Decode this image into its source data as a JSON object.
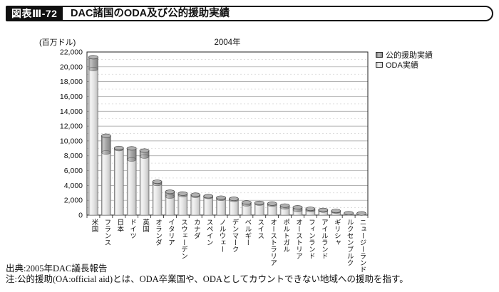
{
  "header": {
    "figure_label": "図表Ⅲ-72",
    "title": "DAC諸国のODA及び公的援助実績"
  },
  "chart": {
    "unit_label": "(百万ドル)",
    "year_label": "2004年",
    "legend": [
      {
        "label": "公的援助実績",
        "swatch": "dark-gray"
      },
      {
        "label": "ODA実績",
        "swatch": "light-gray"
      }
    ]
  },
  "chart_data": {
    "type": "bar",
    "stacked": true,
    "title": "2004年",
    "xlabel": "",
    "ylabel": "百万ドル",
    "ylim": [
      0,
      22000
    ],
    "ytick_interval": 2000,
    "grid": true,
    "legend_position": "top-right",
    "categories": [
      "米国",
      "フランス",
      "日本",
      "ドイツ",
      "英国",
      "オランダ",
      "イタリア",
      "スウェーデン",
      "カナダ",
      "スペイン",
      "ノルウェー",
      "デンマーク",
      "ベルギー",
      "スイス",
      "オーストラリア",
      "ポルトガル",
      "オーストリア",
      "フィンランド",
      "アイルランド",
      "ギリシャ",
      "ルクセンブルク",
      "ニュージーランド"
    ],
    "series": [
      {
        "name": "ODA実績",
        "values": [
          19700,
          8450,
          8900,
          7500,
          7900,
          4200,
          2500,
          2700,
          2600,
          2450,
          2200,
          2050,
          1450,
          1550,
          1400,
          1030,
          680,
          660,
          610,
          470,
          240,
          210
        ]
      },
      {
        "name": "公的援助実績",
        "values": [
          1600,
          2250,
          150,
          1500,
          800,
          300,
          650,
          200,
          150,
          100,
          150,
          150,
          250,
          100,
          150,
          250,
          370,
          190,
          90,
          90,
          20,
          10
        ]
      }
    ]
  },
  "colors": {
    "oda_fill": "#e8e8e8",
    "oa_fill": "#a0a0a0",
    "grid_major": "#9a9a9a",
    "grid_minor": "#d4d4d4",
    "axis": "#222222",
    "header_bg": "#101010"
  },
  "footer": {
    "source": "出典:2005年DAC議長報告",
    "note": "注:公的援助(OA:official aid)とは、ODA卒業国や、ODAとしてカウントできない地域への援助を指す。"
  }
}
